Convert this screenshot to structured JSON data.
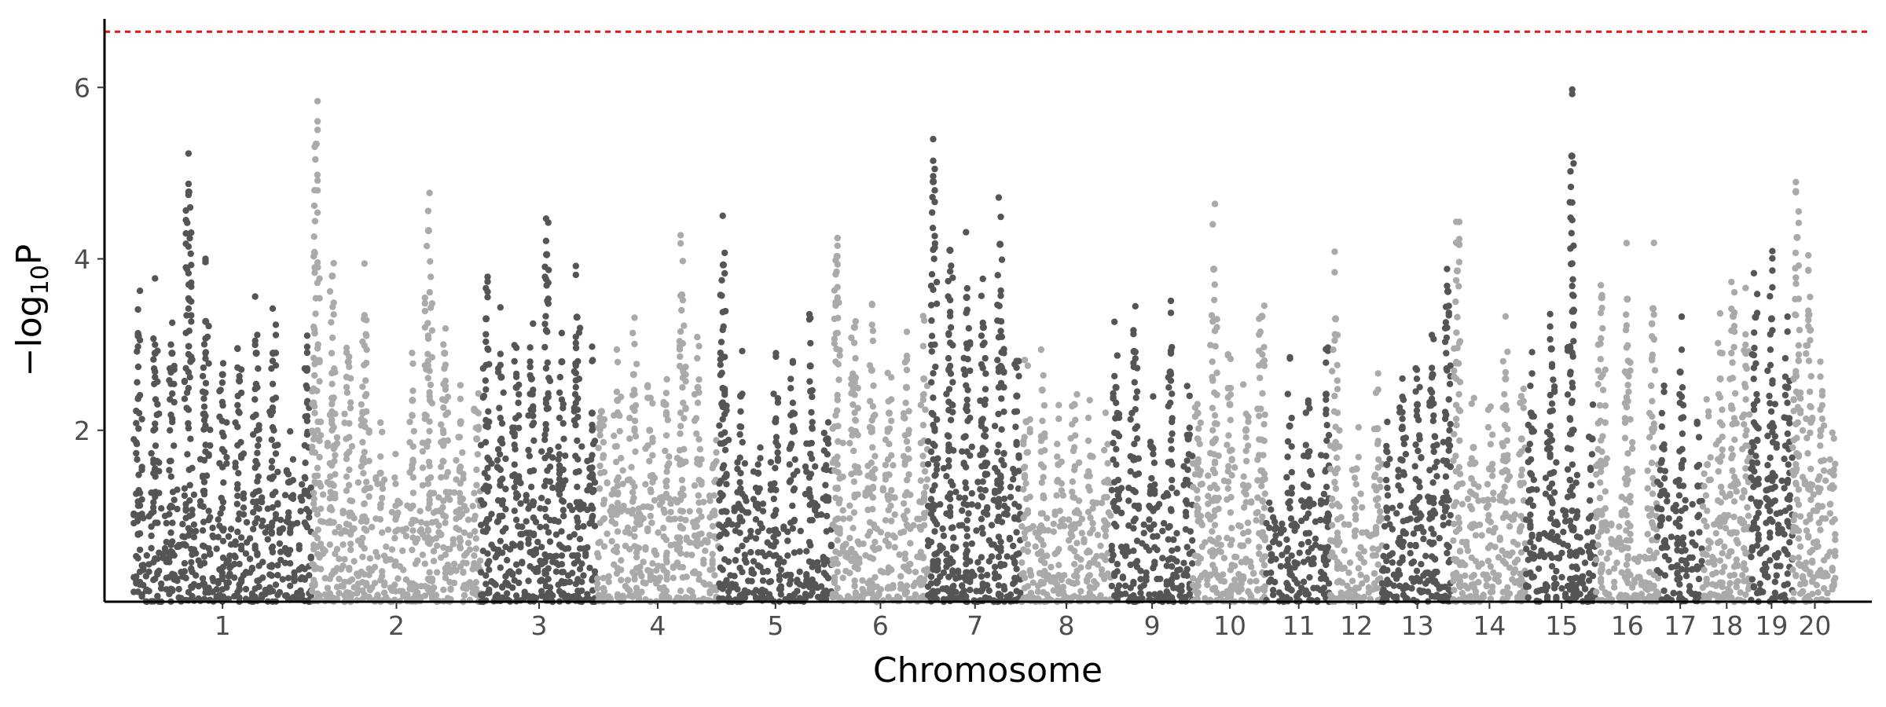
{
  "chart_data": {
    "type": "scatter",
    "xlabel": "Chromosome",
    "ylabel": {
      "prefix": "−log",
      "subscript": "10",
      "suffix": "P"
    },
    "ylim": [
      0,
      6.8
    ],
    "yticks": [
      2,
      4,
      6
    ],
    "threshold": {
      "value": 6.65,
      "color": "#e41a1c",
      "style": "dashed"
    },
    "grid": false,
    "legend": "none",
    "colors": {
      "dark": "#555555",
      "light": "#aaaaaa"
    },
    "chromosomes": [
      {
        "label": "1",
        "length": 11.1,
        "peaks": [
          3.1,
          2.9,
          2.9,
          4.78,
          3.27,
          2.65,
          2.58,
          2.9,
          2.9,
          1.4,
          2.7
        ]
      },
      {
        "label": "2",
        "length": 10.6,
        "peaks": [
          5.34,
          3.8,
          2.8,
          3.3,
          1.5,
          1.0,
          2.35,
          4.33,
          2.9,
          2.1,
          1.9
        ]
      },
      {
        "label": "3",
        "length": 7.2,
        "peaks": [
          3.3,
          2.62,
          2.5,
          2.6,
          4.05,
          2.8,
          3.32,
          2.2
        ]
      },
      {
        "label": "4",
        "length": 7.6,
        "peaks": [
          2.22,
          2.35,
          2.65,
          2.0,
          2.3,
          3.58,
          2.5,
          1.6
        ]
      },
      {
        "label": "5",
        "length": 7.1,
        "peaks": [
          3.93,
          2.4,
          1.5,
          2.1,
          2.2,
          2.75,
          1.9
        ]
      },
      {
        "label": "6",
        "length": 6.0,
        "peaks": [
          4.03,
          3.2,
          2.7,
          2.2,
          2.5,
          2.6
        ]
      },
      {
        "label": "7",
        "length": 5.8,
        "peaks": [
          4.9,
          4.1,
          3.55,
          3.2,
          4.17,
          2.4
        ]
      },
      {
        "label": "8",
        "length": 5.6,
        "peaks": [
          2.1,
          2.47,
          1.6,
          2.3,
          1.7,
          1.4
        ]
      },
      {
        "label": "9",
        "length": 5.1,
        "peaks": [
          2.5,
          2.92,
          1.8,
          2.68,
          1.9
        ]
      },
      {
        "label": "10",
        "length": 4.6,
        "peaks": [
          2.2,
          3.88,
          2.3,
          2.0,
          3.33
        ]
      },
      {
        "label": "11",
        "length": 4.0,
        "peaks": [
          0.55,
          2.05,
          1.7,
          2.42
        ]
      },
      {
        "label": "12",
        "length": 3.2,
        "peaks": [
          3.3,
          1.55,
          2.02
        ]
      },
      {
        "label": "13",
        "length": 4.4,
        "peaks": [
          1.6,
          2.02,
          2.3,
          2.65,
          3.62
        ]
      },
      {
        "label": "14",
        "length": 4.6,
        "peaks": [
          3.86,
          1.8,
          1.55,
          2.6,
          1.9
        ]
      },
      {
        "label": "15",
        "length": 4.4,
        "peaks": [
          2.2,
          2.95,
          5.2,
          1.9
        ]
      },
      {
        "label": "16",
        "length": 3.8,
        "peaks": [
          3.55,
          3.53,
          3.42
        ]
      },
      {
        "label": "17",
        "length": 2.8,
        "peaks": [
          1.8,
          2.68,
          1.35
        ]
      },
      {
        "label": "18",
        "length": 3.0,
        "peaks": [
          1.6,
          2.6,
          3.33,
          2.9
        ]
      },
      {
        "label": "19",
        "length": 2.6,
        "peaks": [
          3.32,
          3.3,
          2.5
        ]
      },
      {
        "label": "20",
        "length": 2.8,
        "peaks": [
          4.25,
          3.35,
          2.0,
          1.5
        ]
      }
    ]
  }
}
